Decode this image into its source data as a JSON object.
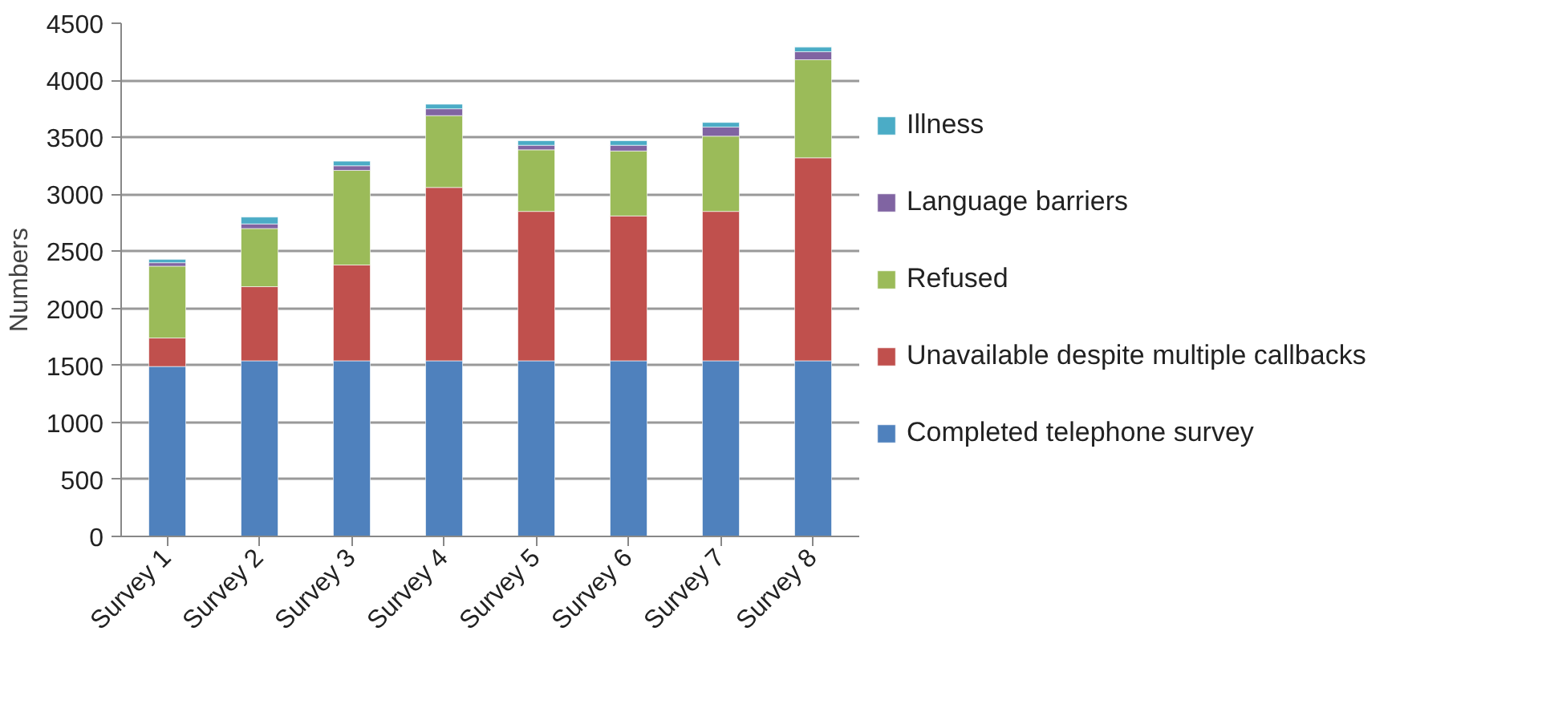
{
  "chart_data": {
    "type": "bar",
    "stacked": true,
    "ylabel": "Numbers",
    "categories": [
      "Survey 1",
      "Survey 2",
      "Survey 3",
      "Survey 4",
      "Survey 5",
      "Survey 6",
      "Survey 7",
      "Survey 8"
    ],
    "series": [
      {
        "name": "Completed telephone survey",
        "color": "#4f81bd",
        "values": [
          1490,
          1540,
          1540,
          1540,
          1540,
          1540,
          1540,
          1540
        ]
      },
      {
        "name": "Unavailable despite multiple callbacks",
        "color": "#c0504d",
        "values": [
          250,
          650,
          840,
          1520,
          1310,
          1270,
          1310,
          1780
        ]
      },
      {
        "name": "Refused",
        "color": "#9bbb59",
        "values": [
          630,
          510,
          830,
          630,
          540,
          570,
          660,
          860
        ]
      },
      {
        "name": "Language barriers",
        "color": "#8064a2",
        "values": [
          30,
          40,
          40,
          60,
          40,
          50,
          80,
          70
        ]
      },
      {
        "name": "Illness",
        "color": "#4bacc6",
        "values": [
          30,
          60,
          40,
          40,
          40,
          40,
          40,
          40
        ]
      }
    ],
    "ylim": [
      0,
      4500
    ],
    "yticks": [
      0,
      500,
      1000,
      1500,
      2000,
      2500,
      3000,
      3500,
      4000,
      4500
    ],
    "grid": "y",
    "legend": "right"
  }
}
